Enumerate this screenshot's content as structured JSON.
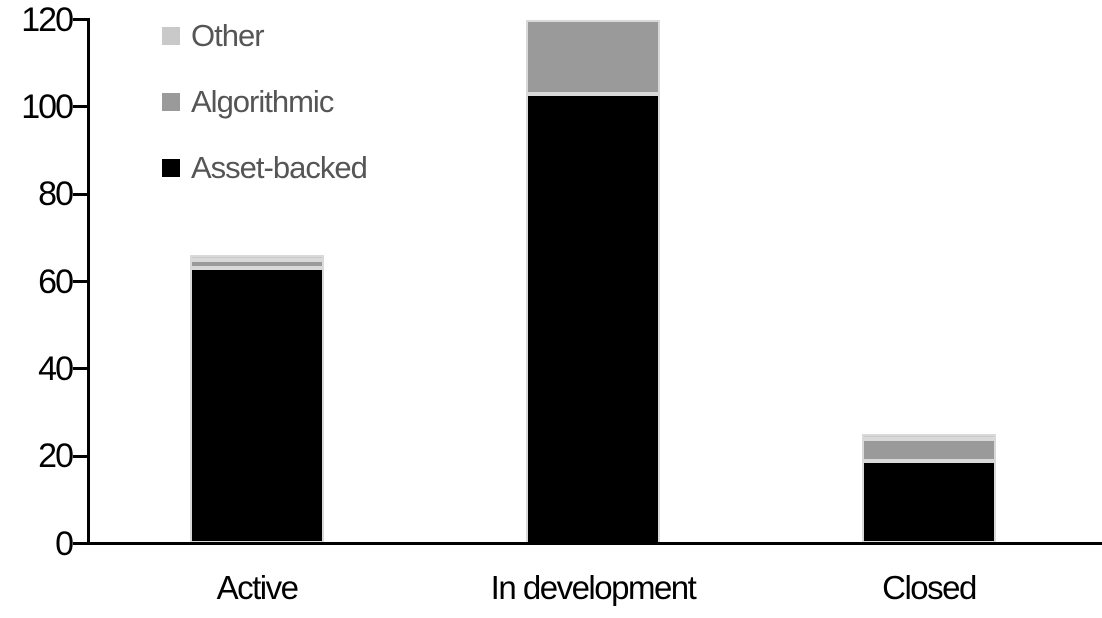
{
  "chart_data": {
    "type": "bar",
    "stacked": true,
    "title": "",
    "xlabel": "",
    "ylabel": "",
    "categories": [
      "Active",
      "In development",
      "Closed"
    ],
    "series": [
      {
        "name": "Asset-backed",
        "color": "#000000",
        "values": [
          63,
          103,
          19
        ]
      },
      {
        "name": "Algorithmic",
        "color": "#9a9a9a",
        "values": [
          2,
          17,
          5
        ]
      },
      {
        "name": "Other",
        "color": "#c9c9c9",
        "values": [
          1,
          0,
          1
        ]
      }
    ],
    "totals": [
      66,
      120,
      25
    ],
    "ylim": [
      0,
      120
    ],
    "yticks": [
      0,
      20,
      40,
      60,
      80,
      100,
      120
    ],
    "grid": false,
    "legend_position": "top-left",
    "legend_order": [
      "Other",
      "Algorithmic",
      "Asset-backed"
    ],
    "legend_text_color": "#555555",
    "axis_color": "#000000",
    "segment_border_color": "#d9d9d9",
    "background_color": "#ffffff"
  }
}
